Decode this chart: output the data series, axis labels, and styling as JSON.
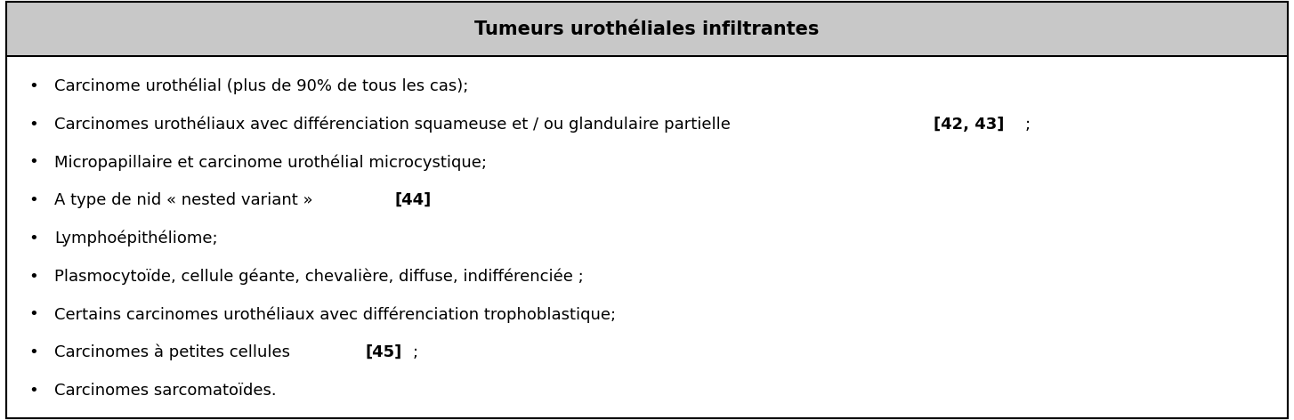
{
  "title": "Tumeurs urothéliales infiltrantes",
  "header_bg": "#c8c8c8",
  "body_bg": "#ffffff",
  "border_color": "#000000",
  "title_fontsize": 15,
  "body_fontsize": 13,
  "bullet_items": [
    {
      "text": "Carcinome urothélial (plus de 90% de tous les cas);",
      "bold_parts": []
    },
    {
      "text": "Carcinomes urothéliaux avec différenciation squameuse et / ou glandulaire partielle [42, 43];",
      "bold_parts": [
        "[42, 43]"
      ]
    },
    {
      "text": "Micropapillaire et carcinome urothélial microcystique;",
      "bold_parts": []
    },
    {
      "text": "A type de nid « nested variant » [44]",
      "bold_parts": [
        "[44]"
      ]
    },
    {
      "text": "Lymphoépithéliome;",
      "bold_parts": []
    },
    {
      "text": "Plasmocytoïde, cellule géante, chevalière, diffuse, indifférenciée ;",
      "bold_parts": []
    },
    {
      "text": "Certains carcinomes urothéliaux avec différenciation trophoblastique;",
      "bold_parts": []
    },
    {
      "text": "Carcinomes à petites cellules [45];",
      "bold_parts": [
        "[45]"
      ]
    },
    {
      "text": "Carcinomes sarcomatoïdes.",
      "bold_parts": []
    }
  ],
  "bullet_char": "•",
  "fig_width": 14.54,
  "fig_height": 4.72,
  "dpi": 100
}
